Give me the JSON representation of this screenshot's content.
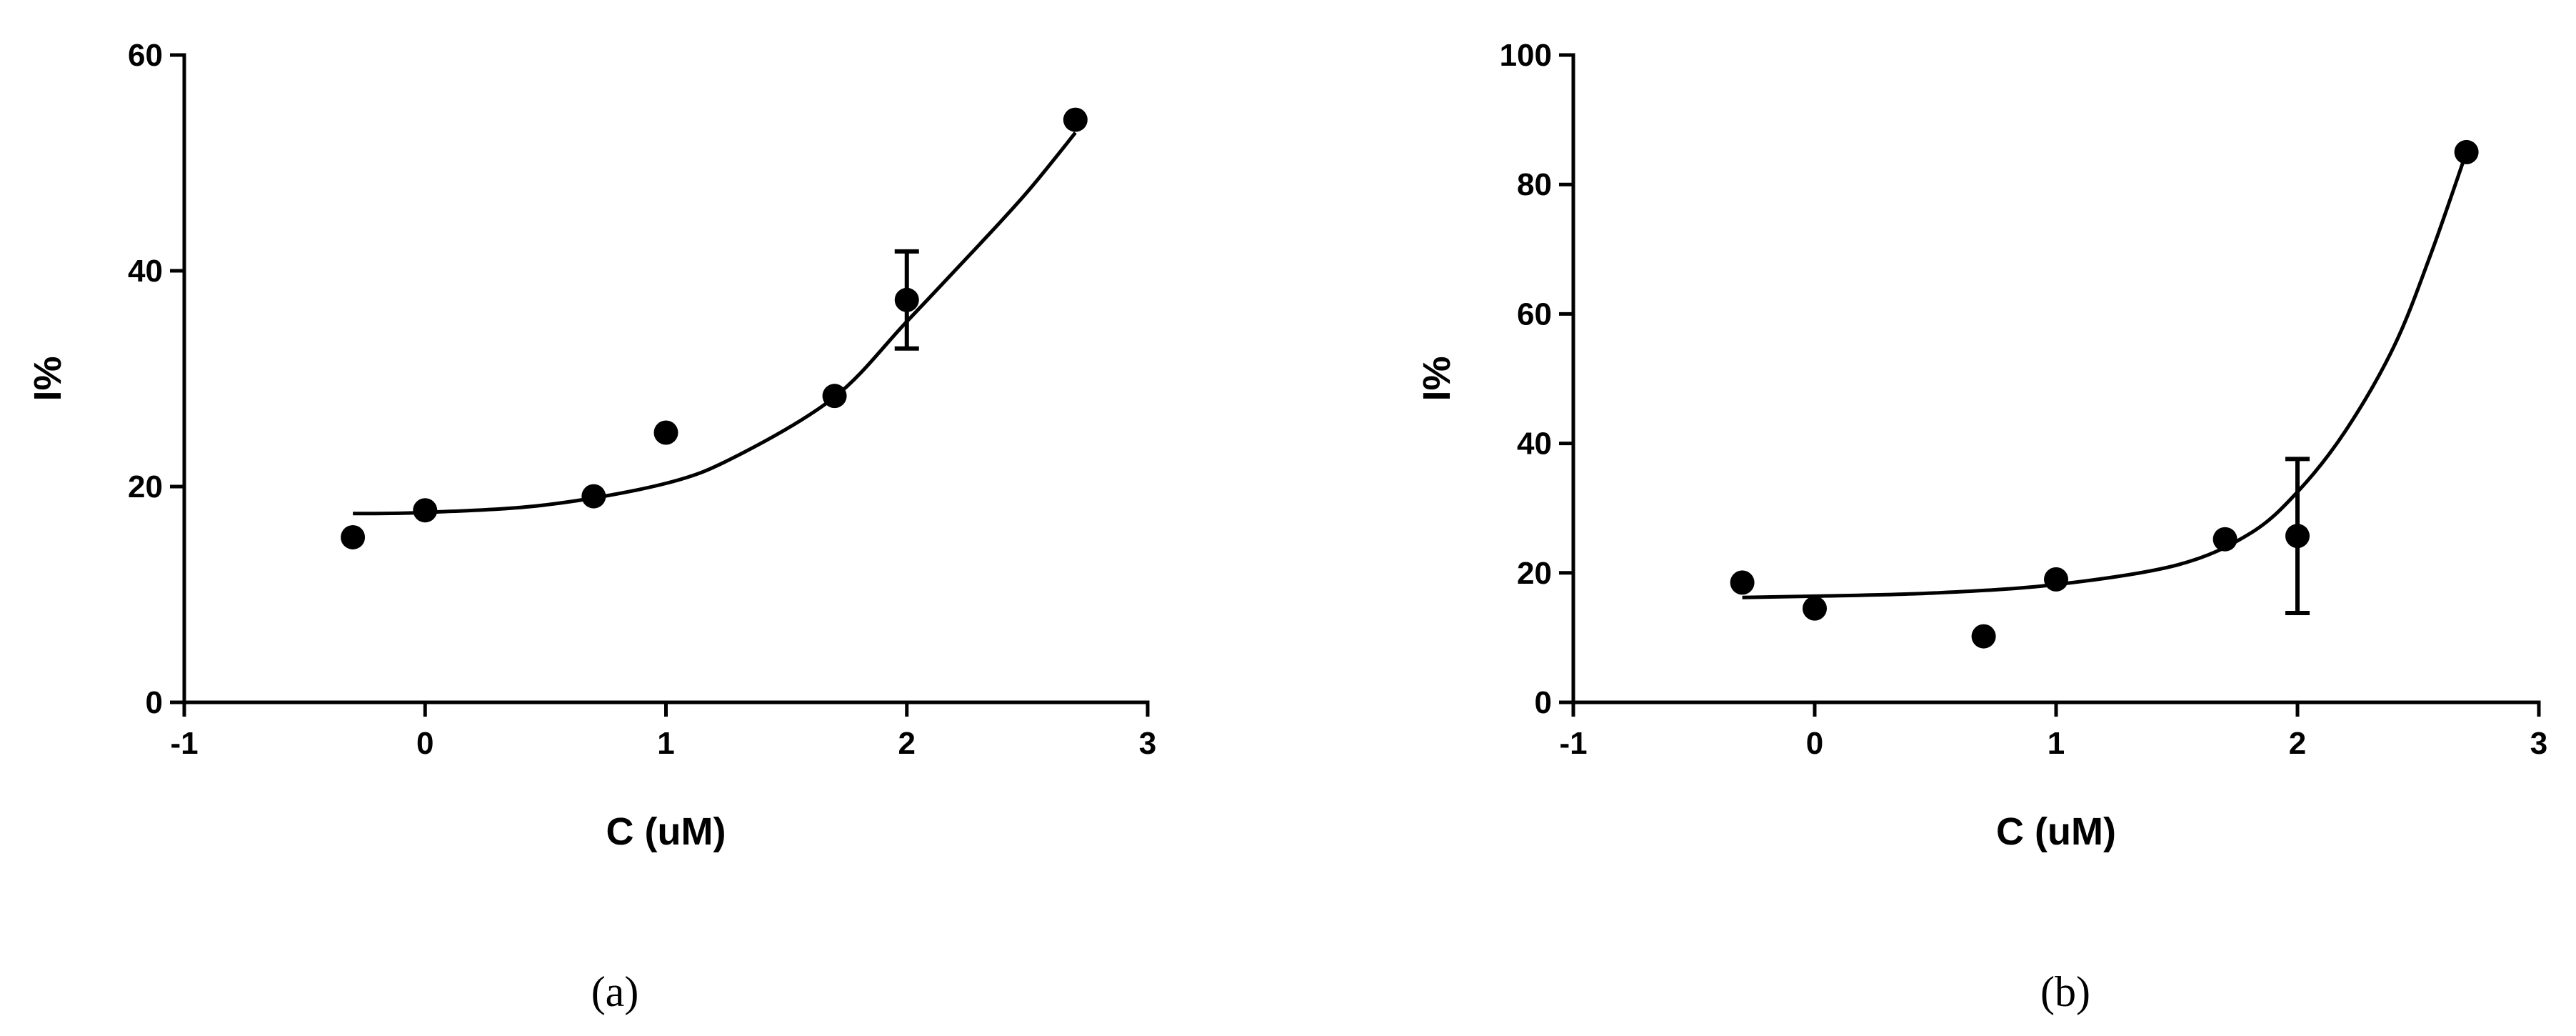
{
  "chart_data": [
    {
      "type": "scatter",
      "caption": "(a)",
      "xlabel": "C (uM)",
      "ylabel": "I%",
      "xlim": [
        -1,
        3
      ],
      "ylim": [
        0,
        60
      ],
      "xticks": [
        -1,
        0,
        1,
        2,
        3
      ],
      "yticks": [
        0,
        20,
        40,
        60
      ],
      "grid": false,
      "legend": "none",
      "points": [
        {
          "x": -0.3,
          "y": 15.3
        },
        {
          "x": 0,
          "y": 17.8
        },
        {
          "x": 0.7,
          "y": 19.1
        },
        {
          "x": 1,
          "y": 25.0
        },
        {
          "x": 1.7,
          "y": 28.4
        },
        {
          "x": 2,
          "y": 37.3,
          "error_low": 32.8,
          "error_high": 41.8
        },
        {
          "x": 2.7,
          "y": 54.0
        }
      ],
      "fit_curve": [
        {
          "x": -0.3,
          "y": 17.5
        },
        {
          "x": 0,
          "y": 17.6
        },
        {
          "x": 0.5,
          "y": 18.3
        },
        {
          "x": 1,
          "y": 20.3
        },
        {
          "x": 1.3,
          "y": 22.9
        },
        {
          "x": 1.7,
          "y": 28.3
        },
        {
          "x": 2,
          "y": 35.3
        },
        {
          "x": 2.3,
          "y": 42.4
        },
        {
          "x": 2.5,
          "y": 47.3
        },
        {
          "x": 2.7,
          "y": 52.8
        }
      ]
    },
    {
      "type": "scatter",
      "caption": "(b)",
      "xlabel": "C (uM)",
      "ylabel": "I%",
      "xlim": [
        -1,
        3
      ],
      "ylim": [
        0,
        100
      ],
      "xticks": [
        -1,
        0,
        1,
        2,
        3
      ],
      "yticks": [
        0,
        20,
        40,
        60,
        80,
        100
      ],
      "grid": false,
      "legend": "none",
      "points": [
        {
          "x": -0.3,
          "y": 18.5
        },
        {
          "x": 0,
          "y": 14.5
        },
        {
          "x": 0.7,
          "y": 10.2
        },
        {
          "x": 1,
          "y": 19.0
        },
        {
          "x": 1.7,
          "y": 25.2
        },
        {
          "x": 2,
          "y": 25.7,
          "error_low": 13.8,
          "error_high": 37.6
        },
        {
          "x": 2.7,
          "y": 85.0
        }
      ],
      "fit_curve": [
        {
          "x": -0.3,
          "y": 16.2
        },
        {
          "x": 0,
          "y": 16.4
        },
        {
          "x": 0.5,
          "y": 16.9
        },
        {
          "x": 1,
          "y": 18.2
        },
        {
          "x": 1.5,
          "y": 21.2
        },
        {
          "x": 1.8,
          "y": 26.0
        },
        {
          "x": 2,
          "y": 32.5
        },
        {
          "x": 2.2,
          "y": 42.0
        },
        {
          "x": 2.4,
          "y": 55.0
        },
        {
          "x": 2.55,
          "y": 69.0
        },
        {
          "x": 2.7,
          "y": 85.0
        }
      ]
    }
  ]
}
